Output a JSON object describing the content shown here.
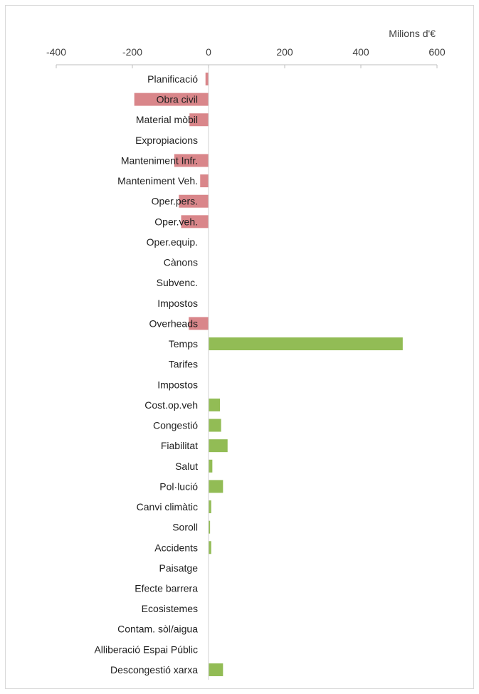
{
  "chart_data": {
    "type": "bar",
    "orientation": "horizontal",
    "unit_label": "Milions d'€",
    "xlim": [
      -400,
      600
    ],
    "x_ticks": [
      -400,
      -200,
      0,
      200,
      400,
      600
    ],
    "x_tick_labels": [
      "-400",
      "-200",
      "0",
      "200",
      "400",
      "600"
    ],
    "axis_position": "top",
    "gridlines": false,
    "legend": false,
    "colors": {
      "negative": "#d9868a",
      "positive": "#92bc55",
      "axis": "#bfbfbf"
    },
    "categories": [
      "Planificació",
      "Obra civil",
      "Material mòbil",
      "Expropiacions",
      "Manteniment Infr.",
      "Manteniment Veh.",
      "Oper.pers.",
      "Oper.veh.",
      "Oper.equip.",
      "Cànons",
      "Subvenc.",
      "Impostos",
      "Overheads",
      "Temps",
      "Tarifes",
      "Impostos",
      "Cost.op.veh",
      "Congestió",
      "Fiabilitat",
      "Salut",
      "Pol·lució",
      "Canvi climàtic",
      "Soroll",
      "Accidents",
      "Paisatge",
      "Efecte barrera",
      "Ecosistemes",
      "Contam. sòl/aigua",
      "Alliberació Espai Públic",
      "Descongestió xarxa"
    ],
    "values": [
      -8,
      -195,
      -50,
      0,
      -90,
      -22,
      -78,
      -72,
      0,
      0,
      0,
      0,
      -52,
      510,
      0,
      0,
      30,
      33,
      50,
      10,
      38,
      7,
      4,
      7,
      0,
      0,
      0,
      0,
      0,
      38
    ]
  }
}
